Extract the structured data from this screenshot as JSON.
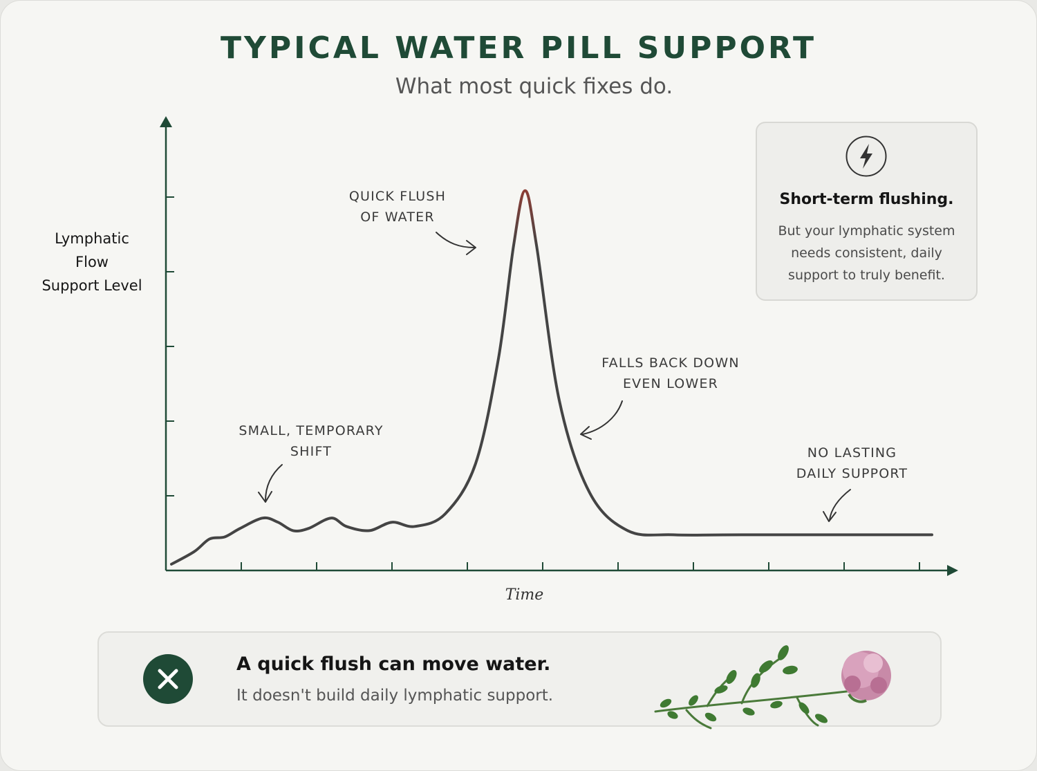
{
  "title": "TYPICAL WATER PILL SUPPORT",
  "subtitle": "What most quick fixes do.",
  "chart_data": {
    "type": "line",
    "xlabel": "Time",
    "ylabel": [
      "Lymphatic",
      "Flow",
      "Support Level"
    ],
    "grid": false,
    "x_ticks": 10,
    "y_ticks": 5,
    "xlim": [
      0,
      100
    ],
    "ylim": [
      0,
      100
    ],
    "series": [
      {
        "points": [
          [
            0,
            1
          ],
          [
            3,
            4
          ],
          [
            5,
            7
          ],
          [
            7,
            7.5
          ],
          [
            9,
            9.5
          ],
          [
            12,
            12
          ],
          [
            14,
            11
          ],
          [
            16,
            9
          ],
          [
            18,
            9.5
          ],
          [
            21,
            12
          ],
          [
            23,
            10
          ],
          [
            26,
            9
          ],
          [
            29,
            11
          ],
          [
            32,
            10
          ],
          [
            36,
            13
          ],
          [
            40,
            25
          ],
          [
            43,
            50
          ],
          [
            45,
            77
          ],
          [
            46.5,
            90
          ],
          [
            48,
            77
          ],
          [
            51,
            40
          ],
          [
            55,
            18
          ],
          [
            60,
            9
          ],
          [
            66,
            8
          ],
          [
            75,
            8
          ],
          [
            100,
            8
          ]
        ],
        "line_color": "#444444",
        "peak_color": "#c0392b"
      }
    ],
    "annotations": [
      {
        "lines": [
          "Small, temporary",
          "shift"
        ]
      },
      {
        "lines": [
          "Quick flush",
          "of water"
        ]
      },
      {
        "lines": [
          "Falls back down",
          "even lower"
        ]
      },
      {
        "lines": [
          "No lasting",
          "daily support"
        ]
      }
    ]
  },
  "callout": {
    "icon": "lightning-bolt-icon",
    "title": "Short-term flushing.",
    "body": "But your lymphatic system needs consistent, daily support to truly benefit."
  },
  "banner": {
    "icon": "close-icon",
    "title": "A quick flush can move water.",
    "body": "It doesn't build daily lymphatic support.",
    "image": "red-clover-flower-icon"
  },
  "colors": {
    "brand": "#1f4a36",
    "peak": "#c0392b",
    "line": "#444444"
  }
}
